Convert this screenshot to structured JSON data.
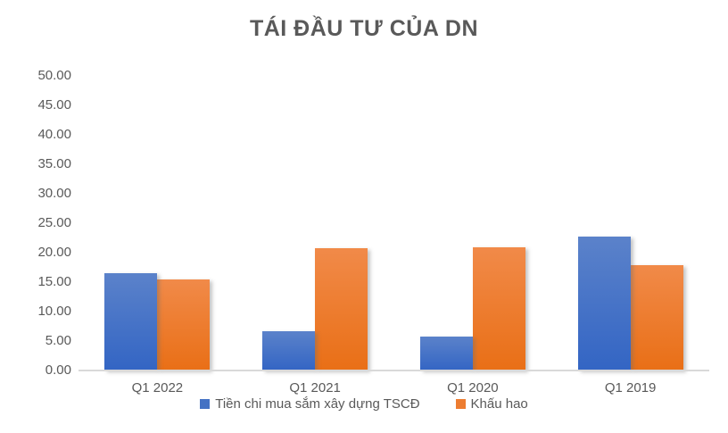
{
  "chart_data": {
    "type": "bar",
    "title": "TÁI ĐẦU TƯ CỦA DN",
    "categories": [
      "Q1 2022",
      "Q1 2021",
      "Q1 2020",
      "Q1 2019"
    ],
    "series": [
      {
        "name": "Tiền chi mua sắm xây dựng TSCĐ",
        "color": "#4472C4",
        "gradient_top": "#5B82CA",
        "gradient_bottom": "#3365C4",
        "values": [
          16.5,
          6.7,
          5.7,
          22.8
        ]
      },
      {
        "name": "Khấu hao",
        "color": "#ED7D31",
        "gradient_top": "#F18A49",
        "gradient_bottom": "#E96F16",
        "values": [
          15.4,
          20.7,
          20.9,
          17.9
        ]
      }
    ],
    "xlabel": "",
    "ylabel": "",
    "ylim": [
      0,
      50
    ],
    "ytick_step": 5,
    "ytick_labels": [
      "0.00",
      "5.00",
      "10.00",
      "15.00",
      "20.00",
      "25.00",
      "30.00",
      "35.00",
      "40.00",
      "45.00",
      "50.00"
    ],
    "grid": false,
    "legend_position": "bottom",
    "axis_line_color": "#D9D9D9",
    "text_color": "#595959"
  }
}
